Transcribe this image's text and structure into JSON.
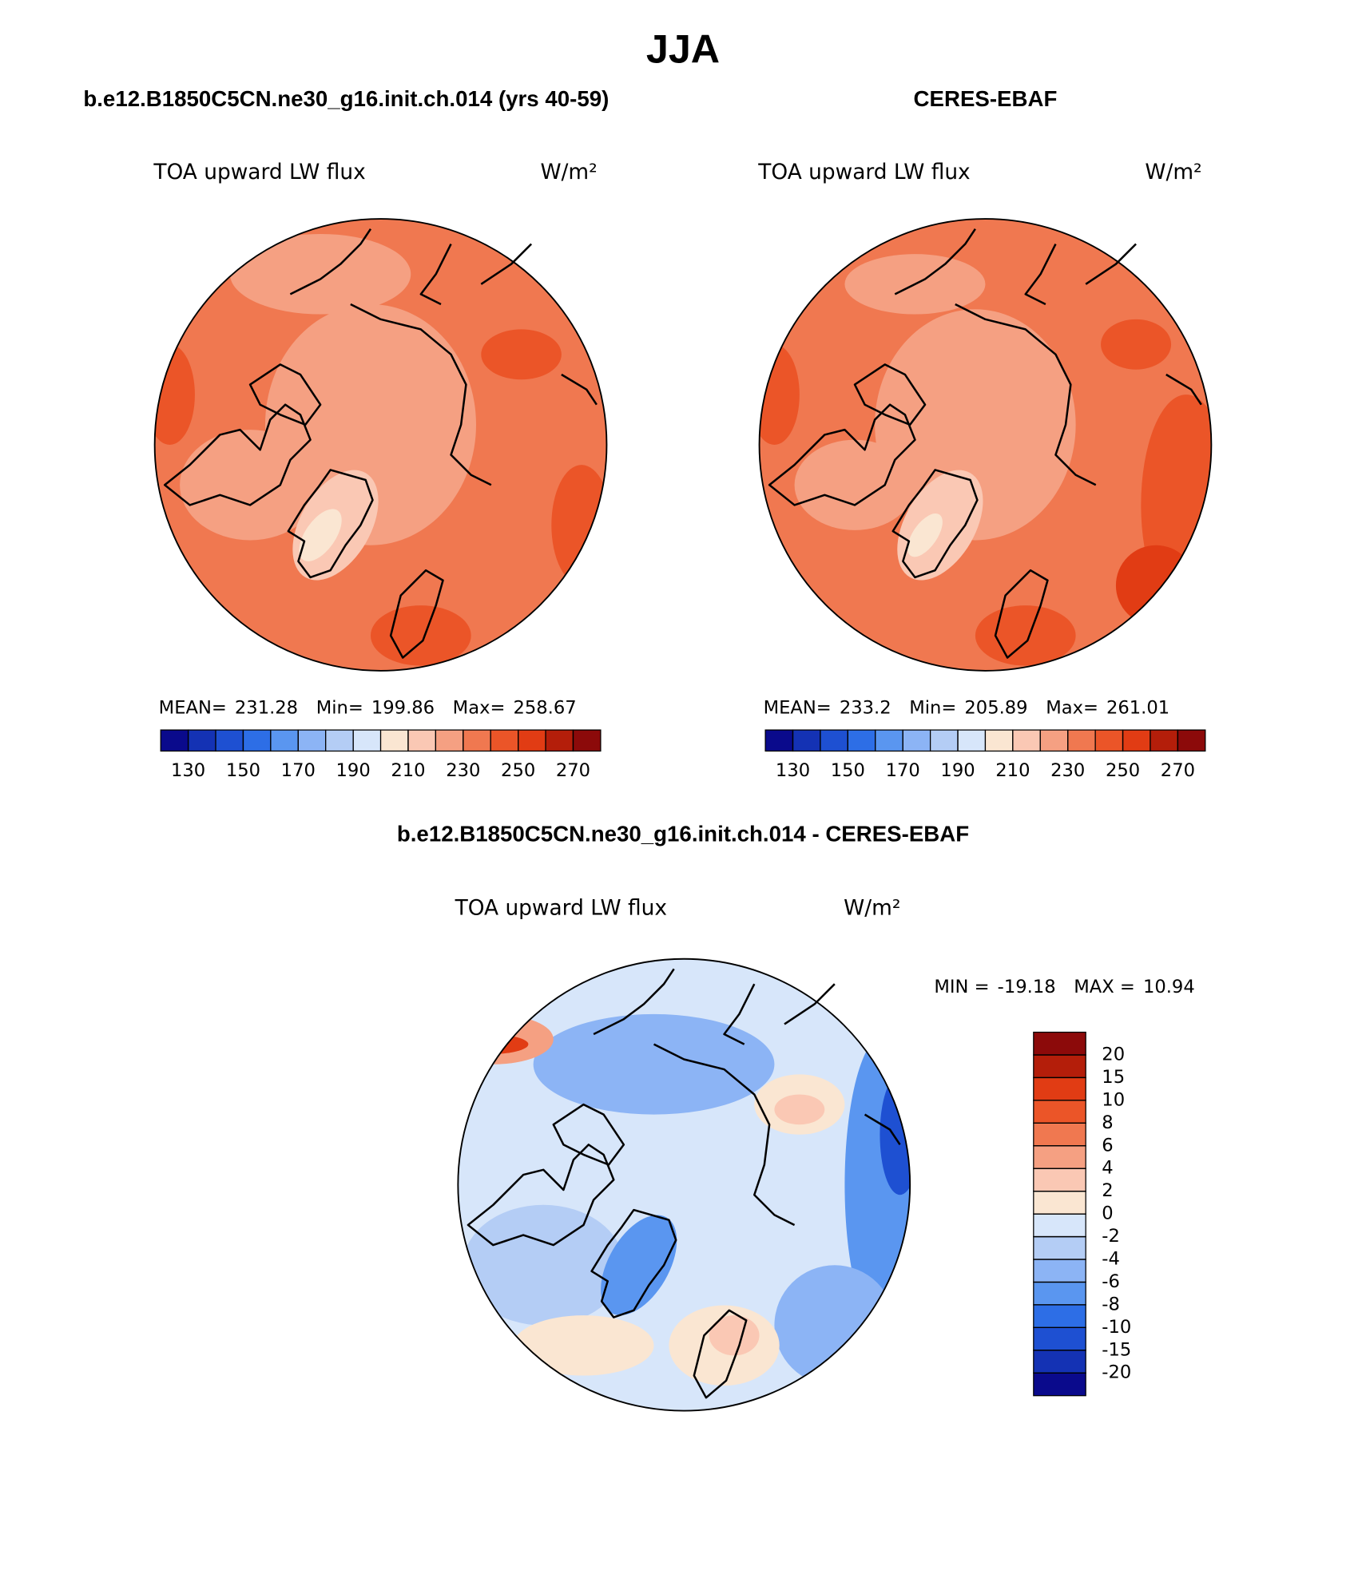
{
  "title": "JJA",
  "panels": [
    {
      "title": "b.e12.B1850C5CN.ne30_g16.init.ch.014 (yrs 40-59)",
      "variable": "TOA upward LW flux",
      "units": "W/m²",
      "stats": [
        {
          "label": "MEAN=",
          "value": 231.28
        },
        {
          "label": "Min=",
          "value": 199.86
        },
        {
          "label": "Max=",
          "value": 258.67
        }
      ],
      "colorbar": {
        "colors": [
          "#0a0a8c",
          "#1432b4",
          "#1e50d2",
          "#2d6ee6",
          "#5a96f0",
          "#8cb4f5",
          "#b4cdf5",
          "#d7e6fa",
          "#fae6d2",
          "#fac8b4",
          "#f5a082",
          "#f07850",
          "#eb5528",
          "#e13c14",
          "#b41e0a",
          "#8c0a0a"
        ],
        "ticks": [
          130,
          150,
          170,
          190,
          210,
          230,
          250,
          270
        ]
      }
    },
    {
      "title": "CERES-EBAF",
      "variable": "TOA upward LW flux",
      "units": "W/m²",
      "stats": [
        {
          "label": "MEAN=",
          "value": 233.2
        },
        {
          "label": "Min=",
          "value": 205.89
        },
        {
          "label": "Max=",
          "value": 261.01
        }
      ],
      "colorbar": {
        "colors": [
          "#0a0a8c",
          "#1432b4",
          "#1e50d2",
          "#2d6ee6",
          "#5a96f0",
          "#8cb4f5",
          "#b4cdf5",
          "#d7e6fa",
          "#fae6d2",
          "#fac8b4",
          "#f5a082",
          "#f07850",
          "#eb5528",
          "#e13c14",
          "#b41e0a",
          "#8c0a0a"
        ],
        "ticks": [
          130,
          150,
          170,
          190,
          210,
          230,
          250,
          270
        ]
      }
    },
    {
      "title": "b.e12.B1850C5CN.ne30_g16.init.ch.014 - CERES-EBAF",
      "variable": "TOA upward LW flux",
      "units": "W/m²",
      "stats": [
        {
          "label": "MIN =",
          "value": -19.18
        },
        {
          "label": "MAX =",
          "value": 10.94
        }
      ],
      "colorbar": {
        "colors": [
          "#0a0a8c",
          "#1432b4",
          "#1e50d2",
          "#2d6ee6",
          "#5a96f0",
          "#8cb4f5",
          "#b4cdf5",
          "#d7e6fa",
          "#fae6d2",
          "#fac8b4",
          "#f5a082",
          "#f07850",
          "#eb5528",
          "#e13c14",
          "#b41e0a",
          "#8c0a0a"
        ],
        "ticks": [
          -20,
          -15,
          -10,
          -8,
          -6,
          -4,
          -2,
          0,
          2,
          4,
          6,
          8,
          10,
          15,
          20
        ]
      }
    }
  ]
}
